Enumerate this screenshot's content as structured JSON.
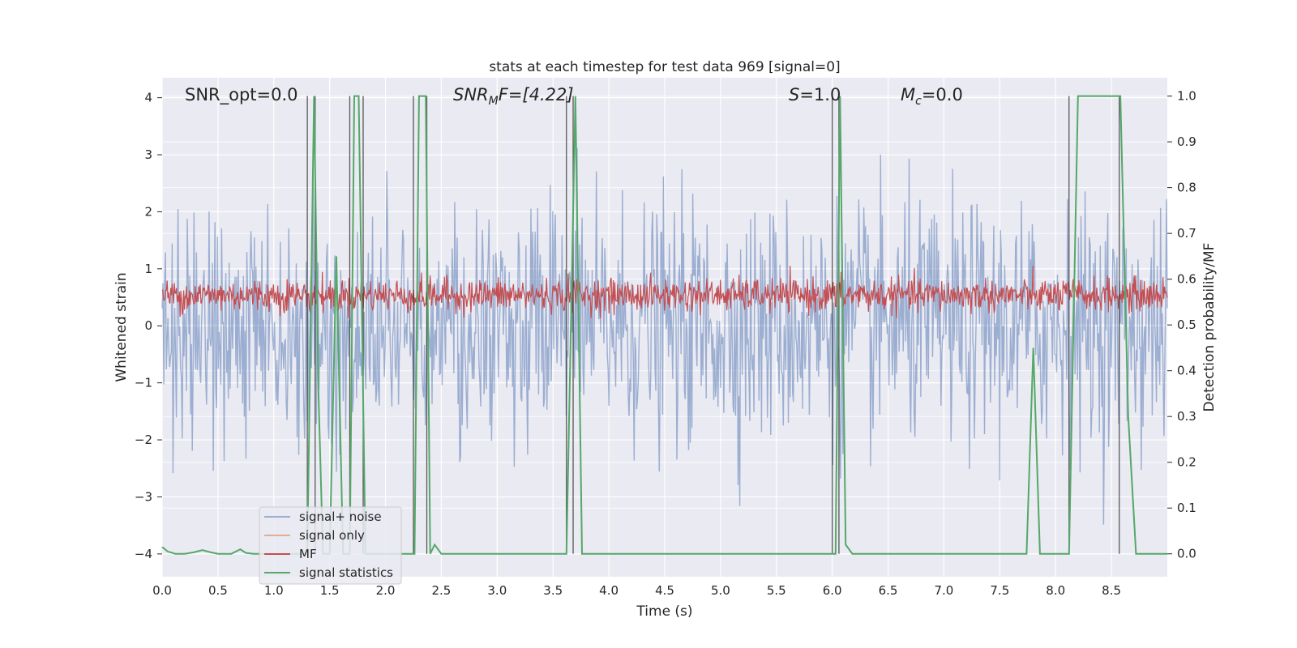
{
  "chart_data": {
    "type": "line",
    "title": "stats at each timestep for test data 969 [signal=0]",
    "xlabel": "Time (s)",
    "ylabel_left": "Whitened strain",
    "ylabel_right": "Detection probability/MF",
    "xlim": [
      0.0,
      9.0
    ],
    "ylim_left": [
      -4.4,
      4.35
    ],
    "ylim_right": [
      -0.05,
      1.04
    ],
    "xticks": [
      "0.0",
      "0.5",
      "1.0",
      "1.5",
      "2.0",
      "2.5",
      "3.0",
      "3.5",
      "4.0",
      "4.5",
      "5.0",
      "5.5",
      "6.0",
      "6.5",
      "7.0",
      "7.5",
      "8.0",
      "8.5"
    ],
    "yticks_left": [
      "4",
      "3",
      "2",
      "1",
      "0",
      "−1",
      "−2",
      "−3",
      "−4"
    ],
    "yticks_right": [
      "1.0",
      "0.9",
      "0.8",
      "0.7",
      "0.6",
      "0.5",
      "0.4",
      "0.3",
      "0.2",
      "0.1",
      "0.0"
    ],
    "annotations": {
      "snr_opt": "SNR_opt=0.0",
      "snr_mf_main": "SNR",
      "snr_mf_sub": "M",
      "snr_mf_rest": "F=[4.22]",
      "s_label": "S",
      "s_rest": "=1.0",
      "mc_main": "M",
      "mc_sub": "c",
      "mc_rest": "=0.0"
    },
    "grid": true,
    "legend_position": "lower-left",
    "series": [
      {
        "name": "signal+ noise",
        "color": "#4c72b0",
        "alpha": 0.5,
        "description_values": "white noise, approximately within [-3.8, 3.9]"
      },
      {
        "name": "signal only",
        "color": "#dd8452",
        "values": []
      },
      {
        "name": "MF",
        "color": "#c44e52",
        "description_values": "noise around 0.5 on right axis, range ~0.52 to 0.62"
      },
      {
        "name": "signal statistics",
        "color": "#55a868",
        "x": [
          0.0,
          0.05,
          0.12,
          0.2,
          0.28,
          0.36,
          0.44,
          0.5,
          0.62,
          0.7,
          0.75,
          0.82,
          0.9,
          1.0,
          1.1,
          1.2,
          1.28,
          1.3,
          1.36,
          1.4,
          1.44,
          1.5,
          1.56,
          1.62,
          1.68,
          1.72,
          1.76,
          1.82,
          1.86,
          1.92,
          2.0,
          2.1,
          2.2,
          2.26,
          2.3,
          2.36,
          2.4,
          2.44,
          2.5,
          2.6,
          3.0,
          3.5,
          3.62,
          3.7,
          3.76,
          3.8,
          4.5,
          5.0,
          5.5,
          6.0,
          6.03,
          6.07,
          6.12,
          6.18,
          6.4,
          7.0,
          7.5,
          7.74,
          7.8,
          7.86,
          7.95,
          8.05,
          8.12,
          8.2,
          8.3,
          8.5,
          8.58,
          8.65,
          8.72,
          8.8,
          9.0
        ],
        "y": [
          0.015,
          0.005,
          0.0,
          0.0,
          0.003,
          0.008,
          0.003,
          0.0,
          0.0,
          0.01,
          0.002,
          0.0,
          0.0,
          0.0,
          0.0,
          0.0,
          0.0,
          0.0,
          1.0,
          0.35,
          0.0,
          0.0,
          0.65,
          0.0,
          0.0,
          1.0,
          1.0,
          0.0,
          0.0,
          0.0,
          0.0,
          0.0,
          0.0,
          0.0,
          1.0,
          1.0,
          0.0,
          0.02,
          0.0,
          0.0,
          0.0,
          0.0,
          0.0,
          1.0,
          0.0,
          0.0,
          0.0,
          0.0,
          0.0,
          0.0,
          0.0,
          1.0,
          0.02,
          0.0,
          0.0,
          0.0,
          0.0,
          0.0,
          0.45,
          0.0,
          0.0,
          0.0,
          0.0,
          1.0,
          1.0,
          1.0,
          1.0,
          0.3,
          0.0,
          0.0,
          0.0
        ]
      }
    ],
    "vertical_lines_x": [
      1.3,
      1.37,
      1.68,
      1.8,
      2.25,
      2.37,
      3.62,
      3.68,
      6.0,
      6.06,
      8.12,
      8.57
    ],
    "vertical_line_color": "#333333"
  }
}
